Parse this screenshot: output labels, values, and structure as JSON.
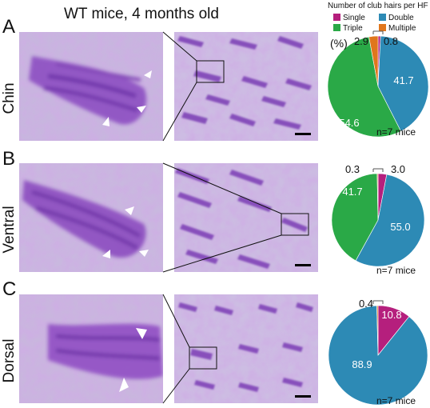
{
  "title": "WT mice, 4 months old",
  "legend": {
    "title": "Number of club hairs per HF",
    "items": [
      {
        "label": "Single",
        "color": "#b51f7d"
      },
      {
        "label": "Double",
        "color": "#2d8ab5"
      },
      {
        "label": "Triple",
        "color": "#2aa947"
      },
      {
        "label": "Multiple",
        "color": "#e0761c"
      }
    ]
  },
  "percent_unit": "(%)",
  "panels": [
    {
      "letter": "A",
      "region": "Chin",
      "n_label": "n=7 mice",
      "labels": {
        "single": "",
        "double": "41.7",
        "triple": "54.6",
        "multiple": "2.9",
        "single_out": "0.8"
      }
    },
    {
      "letter": "B",
      "region": "Ventral",
      "n_label": "n=7 mice",
      "labels": {
        "single": "",
        "double": "55.0",
        "triple": "41.7",
        "multiple": "0.3",
        "single_out": "3.0"
      }
    },
    {
      "letter": "C",
      "region": "Dorsal",
      "n_label": "n=7 mice",
      "labels": {
        "single": "10.8",
        "double": "88.9",
        "triple": "",
        "multiple": "0.4",
        "single_out": ""
      }
    }
  ],
  "chart_data": [
    {
      "type": "pie",
      "title": "",
      "categories": [
        "Single",
        "Double",
        "Triple",
        "Multiple"
      ],
      "values": [
        0.8,
        41.7,
        54.6,
        2.9
      ],
      "colors": [
        "#b51f7d",
        "#2d8ab5",
        "#2aa947",
        "#e0761c"
      ]
    },
    {
      "type": "pie",
      "title": "",
      "categories": [
        "Single",
        "Double",
        "Triple",
        "Multiple"
      ],
      "values": [
        3.0,
        55.0,
        41.7,
        0.3
      ],
      "colors": [
        "#b51f7d",
        "#2d8ab5",
        "#2aa947",
        "#e0761c"
      ]
    },
    {
      "type": "pie",
      "title": "",
      "categories": [
        "Single",
        "Double",
        "Triple",
        "Multiple"
      ],
      "values": [
        10.8,
        88.9,
        0,
        0.4
      ],
      "colors": [
        "#b51f7d",
        "#2d8ab5",
        "#2aa947",
        "#e0761c"
      ]
    }
  ]
}
